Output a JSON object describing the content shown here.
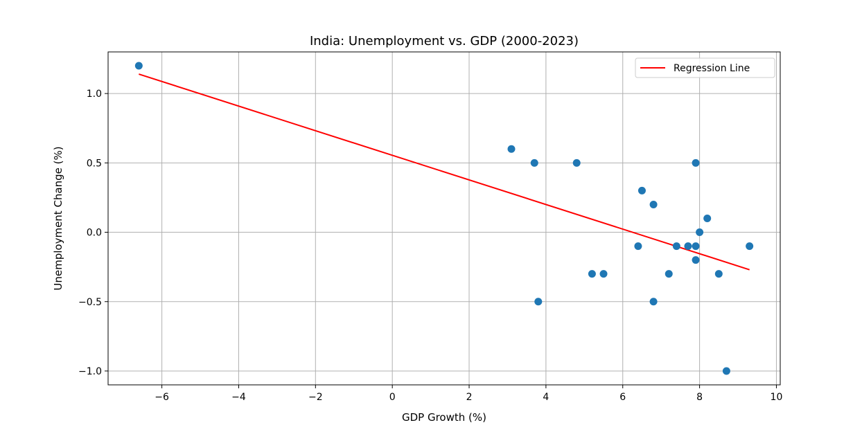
{
  "chart_data": {
    "type": "scatter",
    "title": "India: Unemployment vs. GDP (2000-2023)",
    "xlabel": "GDP Growth (%)",
    "ylabel": "Unemployment Change (%)",
    "xlim": [
      -7.4,
      10.1
    ],
    "ylim": [
      -1.1,
      1.3
    ],
    "x_ticks": [
      -6,
      -4,
      -2,
      0,
      2,
      4,
      6,
      8,
      10
    ],
    "x_tick_labels": [
      "−6",
      "−4",
      "−2",
      "0",
      "2",
      "4",
      "6",
      "8",
      "10"
    ],
    "y_ticks": [
      -1.0,
      -0.5,
      0.0,
      0.5,
      1.0
    ],
    "y_tick_labels": [
      "−1.0",
      "−0.5",
      "0.0",
      "0.5",
      "1.0"
    ],
    "grid": true,
    "legend": {
      "position": "top-right",
      "entries": [
        "Regression Line"
      ]
    },
    "colors": {
      "points": "#1f77b4",
      "regression": "#ff0000",
      "grid": "#b0b0b0"
    },
    "series": [
      {
        "type": "scatter",
        "points": [
          {
            "x": -6.6,
            "y": 1.2
          },
          {
            "x": 3.1,
            "y": 0.6
          },
          {
            "x": 3.7,
            "y": 0.5
          },
          {
            "x": 4.8,
            "y": 0.5
          },
          {
            "x": 7.9,
            "y": 0.5
          },
          {
            "x": 6.5,
            "y": 0.3
          },
          {
            "x": 6.8,
            "y": 0.2
          },
          {
            "x": 8.2,
            "y": 0.1
          },
          {
            "x": 8.0,
            "y": 0.0
          },
          {
            "x": 6.4,
            "y": -0.1
          },
          {
            "x": 7.4,
            "y": -0.1
          },
          {
            "x": 7.7,
            "y": -0.1
          },
          {
            "x": 7.9,
            "y": -0.1
          },
          {
            "x": 9.3,
            "y": -0.1
          },
          {
            "x": 7.9,
            "y": -0.2
          },
          {
            "x": 5.2,
            "y": -0.3
          },
          {
            "x": 5.5,
            "y": -0.3
          },
          {
            "x": 7.2,
            "y": -0.3
          },
          {
            "x": 8.5,
            "y": -0.3
          },
          {
            "x": 3.8,
            "y": -0.5
          },
          {
            "x": 6.8,
            "y": -0.5
          },
          {
            "x": 8.7,
            "y": -1.0
          }
        ]
      },
      {
        "name": "Regression Line",
        "type": "line",
        "points": [
          {
            "x": -6.6,
            "y": 1.14
          },
          {
            "x": 9.3,
            "y": -0.27
          }
        ]
      }
    ]
  }
}
